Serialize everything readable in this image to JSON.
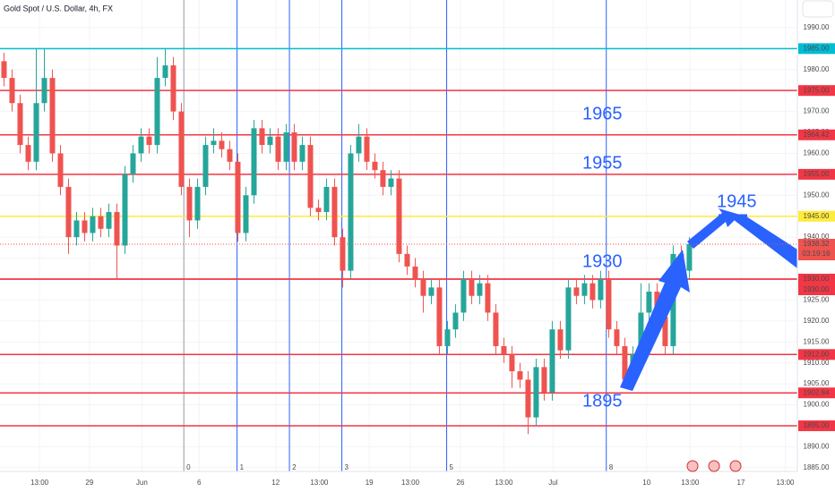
{
  "chart_data": {
    "type": "candlestick",
    "title": "Gold Spot / U.S. Dollar, 4h, FX",
    "up_color": "#26a69a",
    "down_color": "#ef5350",
    "open": [
      1982,
      1978,
      1972,
      1962,
      1958,
      1972,
      1978,
      1960,
      1952,
      1940,
      1944,
      1941,
      1945,
      1942,
      1946,
      1938,
      1955,
      1960,
      1964,
      1962,
      1978,
      1981,
      1970,
      1952,
      1944,
      1952,
      1962,
      1963,
      1961,
      1958,
      1941,
      1950,
      1966,
      1962,
      1964,
      1958,
      1965,
      1958,
      1962,
      1947,
      1946,
      1952,
      1940,
      1932,
      1960,
      1964,
      1958,
      1956,
      1952,
      1954,
      1936,
      1933,
      1930,
      1926,
      1928,
      1914,
      1918,
      1922,
      1930,
      1926,
      1929,
      1922,
      1914,
      1912,
      1908,
      1906,
      1897,
      1909,
      1903,
      1918,
      1913,
      1928,
      1926,
      1929,
      1925,
      1930,
      1918,
      1914,
      1906,
      1912,
      1922,
      1927,
      1921,
      1914,
      1936,
      1932
    ],
    "high": [
      1984,
      1980,
      1974,
      1964,
      1985,
      1985,
      1980,
      1962,
      1954,
      1946,
      1946,
      1947,
      1947,
      1948,
      1948,
      1957,
      1962,
      1966,
      1966,
      1983,
      1985,
      1983,
      1972,
      1954,
      1954,
      1964,
      1966,
      1965,
      1963,
      1960,
      1952,
      1968,
      1968,
      1966,
      1966,
      1967,
      1967,
      1964,
      1964,
      1949,
      1954,
      1954,
      1942,
      1962,
      1967,
      1966,
      1960,
      1958,
      1956,
      1956,
      1938,
      1935,
      1932,
      1930,
      1930,
      1920,
      1924,
      1932,
      1932,
      1931,
      1931,
      1924,
      1916,
      1914,
      1910,
      1908,
      1911,
      1911,
      1920,
      1920,
      1930,
      1930,
      1931,
      1931,
      1932,
      1932,
      1920,
      1916,
      1914,
      1929,
      1929,
      1929,
      1923,
      1938,
      1938,
      1940
    ],
    "low": [
      1976,
      1970,
      1960,
      1956,
      1956,
      1970,
      1958,
      1950,
      1936,
      1938,
      1939,
      1939,
      1940,
      1940,
      1930,
      1936,
      1953,
      1958,
      1960,
      1960,
      1976,
      1968,
      1950,
      1940,
      1942,
      1950,
      1960,
      1959,
      1956,
      1939,
      1939,
      1948,
      1960,
      1960,
      1956,
      1956,
      1956,
      1956,
      1945,
      1944,
      1944,
      1938,
      1928,
      1930,
      1958,
      1956,
      1954,
      1950,
      1950,
      1934,
      1931,
      1928,
      1922,
      1924,
      1912,
      1912,
      1916,
      1920,
      1924,
      1924,
      1920,
      1912,
      1910,
      1904,
      1904,
      1893,
      1895,
      1901,
      1901,
      1911,
      1911,
      1924,
      1924,
      1923,
      1923,
      1916,
      1912,
      1904,
      1904,
      1910,
      1920,
      1919,
      1912,
      1912,
      1930,
      1930
    ],
    "close": [
      1978,
      1972,
      1962,
      1958,
      1972,
      1978,
      1960,
      1952,
      1940,
      1944,
      1941,
      1945,
      1942,
      1946,
      1938,
      1955,
      1960,
      1964,
      1962,
      1978,
      1981,
      1970,
      1952,
      1944,
      1952,
      1962,
      1963,
      1961,
      1958,
      1941,
      1950,
      1966,
      1962,
      1964,
      1958,
      1965,
      1958,
      1962,
      1947,
      1946,
      1952,
      1940,
      1932,
      1960,
      1964,
      1958,
      1956,
      1952,
      1954,
      1936,
      1933,
      1930,
      1926,
      1928,
      1914,
      1918,
      1922,
      1930,
      1926,
      1929,
      1922,
      1914,
      1912,
      1908,
      1906,
      1897,
      1909,
      1903,
      1918,
      1913,
      1928,
      1926,
      1929,
      1925,
      1930,
      1918,
      1914,
      1906,
      1912,
      1922,
      1927,
      1921,
      1914,
      1936,
      1932,
      1938.32
    ],
    "xlim": [
      -0.5,
      98.4
    ],
    "xticks": [
      {
        "value": 4.4,
        "label": "13:00"
      },
      {
        "value": 10.6,
        "label": "29"
      },
      {
        "value": 17.1,
        "label": "Jun"
      },
      {
        "value": 24.2,
        "label": "6"
      },
      {
        "value": 33.7,
        "label": "12"
      },
      {
        "value": 39.1,
        "label": "13:00"
      },
      {
        "value": 45.3,
        "label": "19"
      },
      {
        "value": 50.4,
        "label": "13:00"
      },
      {
        "value": 56.6,
        "label": "26"
      },
      {
        "value": 62,
        "label": "13:00"
      },
      {
        "value": 68.1,
        "label": "Jul"
      },
      {
        "value": 79.7,
        "label": "10"
      },
      {
        "value": 85.1,
        "label": "13:00"
      },
      {
        "value": 91.4,
        "label": "17"
      },
      {
        "value": 96.9,
        "label": "13:00"
      }
    ],
    "ylim": [
      1884.1,
      1996.6
    ],
    "yticks": [
      {
        "value": 1885,
        "label": "1885.00"
      },
      {
        "value": 1890,
        "label": "1890.00"
      },
      {
        "value": 1895,
        "label": "1895.00"
      },
      {
        "value": 1900,
        "label": "1900.00"
      },
      {
        "value": 1905,
        "label": "1905.00"
      },
      {
        "value": 1910,
        "label": "1910.00"
      },
      {
        "value": 1915,
        "label": "1915.00"
      },
      {
        "value": 1920,
        "label": "1920.00"
      },
      {
        "value": 1925,
        "label": "1925.00"
      },
      {
        "value": 1930,
        "label": "1930.00"
      },
      {
        "value": 1935,
        "label": "1935.00"
      },
      {
        "value": 1940,
        "label": "1940.00"
      },
      {
        "value": 1945,
        "label": "1945.00"
      },
      {
        "value": 1950,
        "label": "1950.00"
      },
      {
        "value": 1955,
        "label": "1955.00"
      },
      {
        "value": 1960,
        "label": "1960.00"
      },
      {
        "value": 1965,
        "label": "1965.00"
      },
      {
        "value": 1970,
        "label": "1970.00"
      },
      {
        "value": 1975,
        "label": "1975.00"
      },
      {
        "value": 1980,
        "label": "1980.00"
      },
      {
        "value": 1985,
        "label": "1985.00"
      },
      {
        "value": 1990,
        "label": "1990.00"
      }
    ],
    "levels": [
      {
        "value": 1985,
        "label": "1985.00",
        "color": "#00bcd4"
      },
      {
        "value": 1975,
        "label": "1975.00",
        "color": "#f23645"
      },
      {
        "value": 1964.42,
        "label": "1964.42",
        "color": "#f23645"
      },
      {
        "value": 1955,
        "label": "1955.00",
        "color": "#f23645"
      },
      {
        "value": 1945,
        "label": "1945.00",
        "color": "#ffeb3b"
      },
      {
        "value": 1930,
        "label": "1930.00",
        "color": "#f23645"
      },
      {
        "value": 1930,
        "label": "1930.00",
        "color": "#f23645"
      },
      {
        "value": 1912,
        "label": "1912.00",
        "color": "#f23645"
      },
      {
        "value": 1902.84,
        "label": "1902.84",
        "color": "#f23645"
      },
      {
        "value": 1895,
        "label": "1895.00",
        "color": "#f23645"
      }
    ],
    "last_price": {
      "value": 1938.32,
      "label": "1938.32",
      "countdown": "03:19:16"
    },
    "vlines": [
      {
        "value": 22.3,
        "label": "0",
        "color": "#9598a1"
      },
      {
        "value": 28.9,
        "label": "1",
        "color": "#2962ff"
      },
      {
        "value": 35.4,
        "label": "2",
        "color": "#2962ff"
      },
      {
        "value": 41.9,
        "label": "3",
        "color": "#2962ff"
      },
      {
        "value": 54.9,
        "label": "5",
        "color": "#2962ff"
      },
      {
        "value": 74.7,
        "label": "8",
        "color": "#2962ff"
      }
    ],
    "annotations": [
      "1965",
      "1955",
      "1945",
      "1930",
      "1895"
    ]
  }
}
